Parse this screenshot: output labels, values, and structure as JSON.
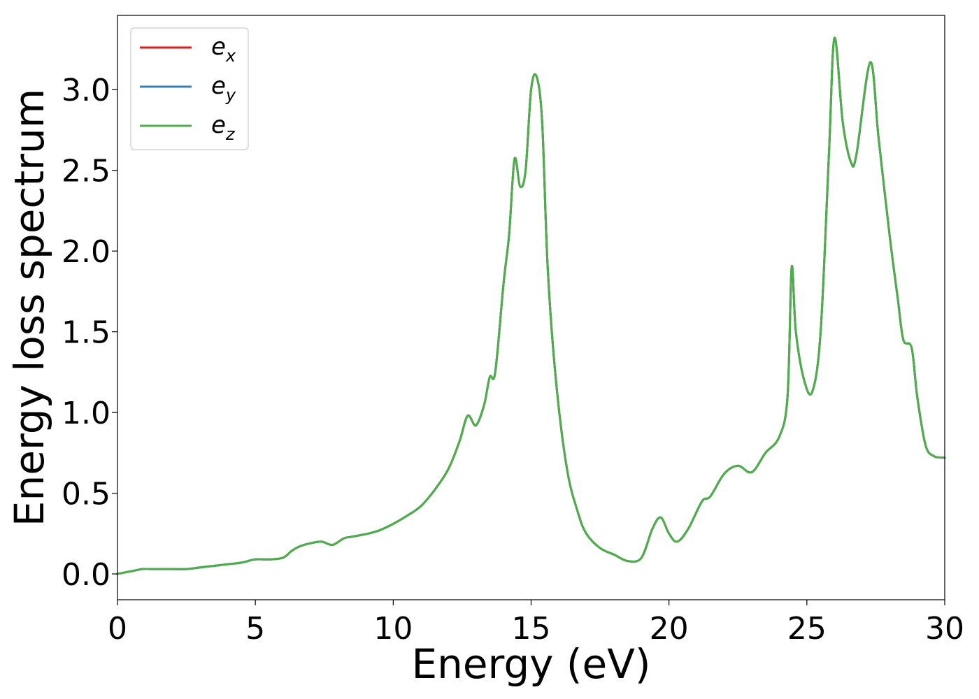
{
  "chart_data": {
    "type": "line",
    "xlabel": "Energy (eV)",
    "ylabel": "Energy loss spectrum",
    "xlim": [
      0,
      30
    ],
    "ylim": [
      -0.16,
      3.46
    ],
    "xticks": [
      0,
      5,
      10,
      15,
      20,
      25,
      30
    ],
    "xtick_labels": [
      "0",
      "5",
      "10",
      "15",
      "20",
      "25",
      "30"
    ],
    "yticks": [
      0.0,
      0.5,
      1.0,
      1.5,
      2.0,
      2.5,
      3.0
    ],
    "ytick_labels": [
      "0.0",
      "0.5",
      "1.0",
      "1.5",
      "2.0",
      "2.5",
      "3.0"
    ],
    "grid": false,
    "legend_position": "top-left",
    "series": [
      {
        "name": "e",
        "sub": "x",
        "color": "#e41a1c",
        "x": [
          0,
          0.3,
          0.6,
          0.9,
          1.2,
          1.5,
          2,
          2.5,
          3,
          3.5,
          4,
          4.5,
          5,
          5.5,
          6,
          6.3,
          6.6,
          7,
          7.4,
          7.8,
          8.2,
          8.5,
          8.8,
          9.1,
          9.5,
          10,
          10.5,
          11,
          11.5,
          12,
          12.4,
          12.7,
          13,
          13.3,
          13.5,
          13.7,
          14,
          14.2,
          14.4,
          14.6,
          14.8,
          15,
          15.2,
          15.4,
          15.6,
          15.9,
          16.3,
          16.7,
          17,
          17.5,
          18,
          18.5,
          19,
          19.4,
          19.7,
          20,
          20.3,
          20.7,
          21.2,
          21.5,
          22,
          22.5,
          23,
          23.5,
          24,
          24.3,
          24.45,
          24.6,
          24.9,
          25.2,
          25.5,
          25.8,
          26,
          26.3,
          26.6,
          26.8,
          27.3,
          27.6,
          28,
          28.3,
          28.5,
          28.8,
          29,
          29.3,
          29.6,
          30
        ],
        "y": [
          0,
          0.01,
          0.02,
          0.03,
          0.03,
          0.03,
          0.03,
          0.03,
          0.04,
          0.05,
          0.06,
          0.07,
          0.09,
          0.09,
          0.1,
          0.14,
          0.17,
          0.19,
          0.2,
          0.18,
          0.22,
          0.23,
          0.24,
          0.25,
          0.27,
          0.31,
          0.36,
          0.42,
          0.52,
          0.65,
          0.82,
          0.98,
          0.92,
          1.05,
          1.22,
          1.25,
          1.8,
          2.1,
          2.57,
          2.4,
          2.5,
          3.0,
          3.08,
          2.8,
          1.9,
          1.2,
          0.65,
          0.38,
          0.25,
          0.16,
          0.12,
          0.08,
          0.1,
          0.28,
          0.35,
          0.25,
          0.2,
          0.28,
          0.45,
          0.48,
          0.62,
          0.67,
          0.63,
          0.75,
          0.85,
          1.1,
          1.9,
          1.5,
          1.2,
          1.13,
          1.5,
          2.6,
          3.32,
          2.8,
          2.55,
          2.6,
          3.17,
          2.7,
          2.1,
          1.7,
          1.45,
          1.4,
          1.1,
          0.8,
          0.73,
          0.72
        ]
      },
      {
        "name": "e",
        "sub": "y",
        "color": "#377eb8",
        "x": [
          0,
          0.3,
          0.6,
          0.9,
          1.2,
          1.5,
          2,
          2.5,
          3,
          3.5,
          4,
          4.5,
          5,
          5.5,
          6,
          6.3,
          6.6,
          7,
          7.4,
          7.8,
          8.2,
          8.5,
          8.8,
          9.1,
          9.5,
          10,
          10.5,
          11,
          11.5,
          12,
          12.4,
          12.7,
          13,
          13.3,
          13.5,
          13.7,
          14,
          14.2,
          14.4,
          14.6,
          14.8,
          15,
          15.2,
          15.4,
          15.6,
          15.9,
          16.3,
          16.7,
          17,
          17.5,
          18,
          18.5,
          19,
          19.4,
          19.7,
          20,
          20.3,
          20.7,
          21.2,
          21.5,
          22,
          22.5,
          23,
          23.5,
          24,
          24.3,
          24.45,
          24.6,
          24.9,
          25.2,
          25.5,
          25.8,
          26,
          26.3,
          26.6,
          26.8,
          27.3,
          27.6,
          28,
          28.3,
          28.5,
          28.8,
          29,
          29.3,
          29.6,
          30
        ],
        "y": [
          0,
          0.01,
          0.02,
          0.03,
          0.03,
          0.03,
          0.03,
          0.03,
          0.04,
          0.05,
          0.06,
          0.07,
          0.09,
          0.09,
          0.1,
          0.14,
          0.17,
          0.19,
          0.2,
          0.18,
          0.22,
          0.23,
          0.24,
          0.25,
          0.27,
          0.31,
          0.36,
          0.42,
          0.52,
          0.65,
          0.82,
          0.98,
          0.92,
          1.05,
          1.22,
          1.25,
          1.8,
          2.1,
          2.57,
          2.4,
          2.5,
          3.0,
          3.08,
          2.8,
          1.9,
          1.2,
          0.65,
          0.38,
          0.25,
          0.16,
          0.12,
          0.08,
          0.1,
          0.28,
          0.35,
          0.25,
          0.2,
          0.28,
          0.45,
          0.48,
          0.62,
          0.67,
          0.63,
          0.75,
          0.85,
          1.1,
          1.9,
          1.5,
          1.2,
          1.13,
          1.5,
          2.6,
          3.32,
          2.8,
          2.55,
          2.6,
          3.17,
          2.7,
          2.1,
          1.7,
          1.45,
          1.4,
          1.1,
          0.8,
          0.73,
          0.72
        ]
      },
      {
        "name": "e",
        "sub": "z",
        "color": "#4daf4a",
        "x": [
          0,
          0.3,
          0.6,
          0.9,
          1.2,
          1.5,
          2,
          2.5,
          3,
          3.5,
          4,
          4.5,
          5,
          5.5,
          6,
          6.3,
          6.6,
          7,
          7.4,
          7.8,
          8.2,
          8.5,
          8.8,
          9.1,
          9.5,
          10,
          10.5,
          11,
          11.5,
          12,
          12.4,
          12.7,
          13,
          13.3,
          13.5,
          13.7,
          14,
          14.2,
          14.4,
          14.6,
          14.8,
          15,
          15.2,
          15.4,
          15.6,
          15.9,
          16.3,
          16.7,
          17,
          17.5,
          18,
          18.5,
          19,
          19.4,
          19.7,
          20,
          20.3,
          20.7,
          21.2,
          21.5,
          22,
          22.5,
          23,
          23.5,
          24,
          24.3,
          24.45,
          24.6,
          24.9,
          25.2,
          25.5,
          25.8,
          26,
          26.3,
          26.6,
          26.8,
          27.3,
          27.6,
          28,
          28.3,
          28.5,
          28.8,
          29,
          29.3,
          29.6,
          30
        ],
        "y": [
          0,
          0.01,
          0.02,
          0.03,
          0.03,
          0.03,
          0.03,
          0.03,
          0.04,
          0.05,
          0.06,
          0.07,
          0.09,
          0.09,
          0.1,
          0.14,
          0.17,
          0.19,
          0.2,
          0.18,
          0.22,
          0.23,
          0.24,
          0.25,
          0.27,
          0.31,
          0.36,
          0.42,
          0.52,
          0.65,
          0.82,
          0.98,
          0.92,
          1.05,
          1.22,
          1.25,
          1.8,
          2.1,
          2.57,
          2.4,
          2.5,
          3.0,
          3.08,
          2.8,
          1.9,
          1.2,
          0.65,
          0.38,
          0.25,
          0.16,
          0.12,
          0.08,
          0.1,
          0.28,
          0.35,
          0.25,
          0.2,
          0.28,
          0.45,
          0.48,
          0.62,
          0.67,
          0.63,
          0.75,
          0.85,
          1.1,
          1.9,
          1.5,
          1.2,
          1.13,
          1.5,
          2.6,
          3.32,
          2.8,
          2.55,
          2.6,
          3.17,
          2.7,
          2.1,
          1.7,
          1.45,
          1.4,
          1.1,
          0.8,
          0.73,
          0.72
        ]
      }
    ]
  }
}
